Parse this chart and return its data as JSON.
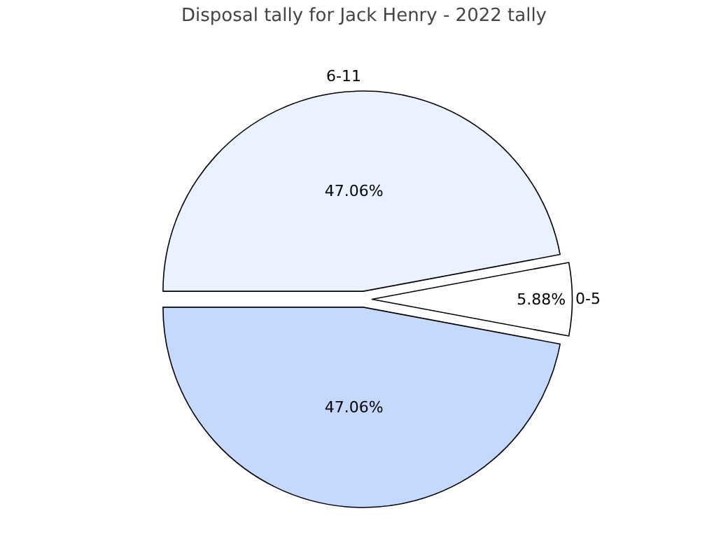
{
  "chart_data": {
    "type": "pie",
    "title": "Disposal tally for Jack Henry - 2022 tally",
    "categories": [
      "6-11",
      "0-5",
      null
    ],
    "values": [
      47.06,
      5.88,
      47.06
    ],
    "colors": [
      "#eaf1ff",
      "#ffffff",
      "#c5d9ff"
    ],
    "value_labels": [
      "47.06%",
      "5.88%",
      "47.06%"
    ],
    "legend": false
  }
}
